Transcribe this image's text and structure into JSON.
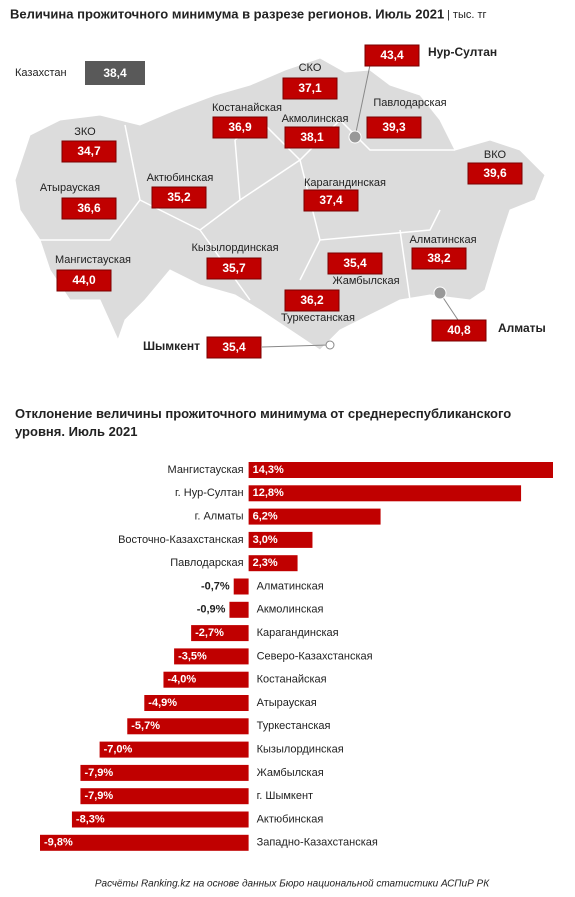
{
  "map": {
    "title": "Величина прожиточного минимума в разрезе регионов. Июль 2021",
    "unit": "| тыс. тг",
    "country": {
      "name": "Казахстан",
      "value": "38,4"
    },
    "regions": [
      {
        "name": "Нур-Султан",
        "value": "43,4"
      },
      {
        "name": "СКО",
        "value": "37,1"
      },
      {
        "name": "Павлодарская",
        "value": "39,3"
      },
      {
        "name": "Костанайская",
        "value": "36,9"
      },
      {
        "name": "Акмолинская",
        "value": "38,1"
      },
      {
        "name": "ЗКО",
        "value": "34,7"
      },
      {
        "name": "ВКО",
        "value": "39,6"
      },
      {
        "name": "Атырауская",
        "value": "36,6"
      },
      {
        "name": "Актюбинская",
        "value": "35,2"
      },
      {
        "name": "Карагандинская",
        "value": "37,4"
      },
      {
        "name": "Алматинская",
        "value": "38,2"
      },
      {
        "name": "Кызылординская",
        "value": "35,7"
      },
      {
        "name": "Мангистауская",
        "value": "44,0"
      },
      {
        "name": "Жамбылская",
        "value": "35,4"
      },
      {
        "name": "Туркестанская",
        "value": "36,2"
      },
      {
        "name": "Шымкент",
        "value": "35,4"
      },
      {
        "name": "Алматы",
        "value": "40,8"
      }
    ]
  },
  "chart_data": {
    "type": "bar",
    "orientation": "horizontal",
    "title": "Отклонение величины прожиточного минимума от среднереспубликанского уровня. Июль 2021",
    "categories": [
      "Мангистауская",
      "г. Нур-Султан",
      "г. Алматы",
      "Восточно-Казахстанская",
      "Павлодарская",
      "Алматинская",
      "Акмолинская",
      "Карагандинская",
      "Северо-Казахстанская",
      "Костанайская",
      "Атырауская",
      "Туркестанская",
      "Кызылординская",
      "Жамбылская",
      "г. Шымкент",
      "Актюбинская",
      "Западно-Казахстанская"
    ],
    "values": [
      14.3,
      12.8,
      6.2,
      3.0,
      2.3,
      -0.7,
      -0.9,
      -2.7,
      -3.5,
      -4.0,
      -4.9,
      -5.7,
      -7.0,
      -7.9,
      -7.9,
      -8.3,
      -9.8
    ],
    "value_labels": [
      "14,3%",
      "12,8%",
      "6,2%",
      "3,0%",
      "2,3%",
      "-0,7%",
      "-0,9%",
      "-2,7%",
      "-3,5%",
      "-4,0%",
      "-4,9%",
      "-5,7%",
      "-7,0%",
      "-7,9%",
      "-7,9%",
      "-8,3%",
      "-9,8%"
    ],
    "color": "#c00000"
  },
  "footer": "Расчёты Ranking.kz на основе данных Бюро национальной статистики АСПиР РК"
}
